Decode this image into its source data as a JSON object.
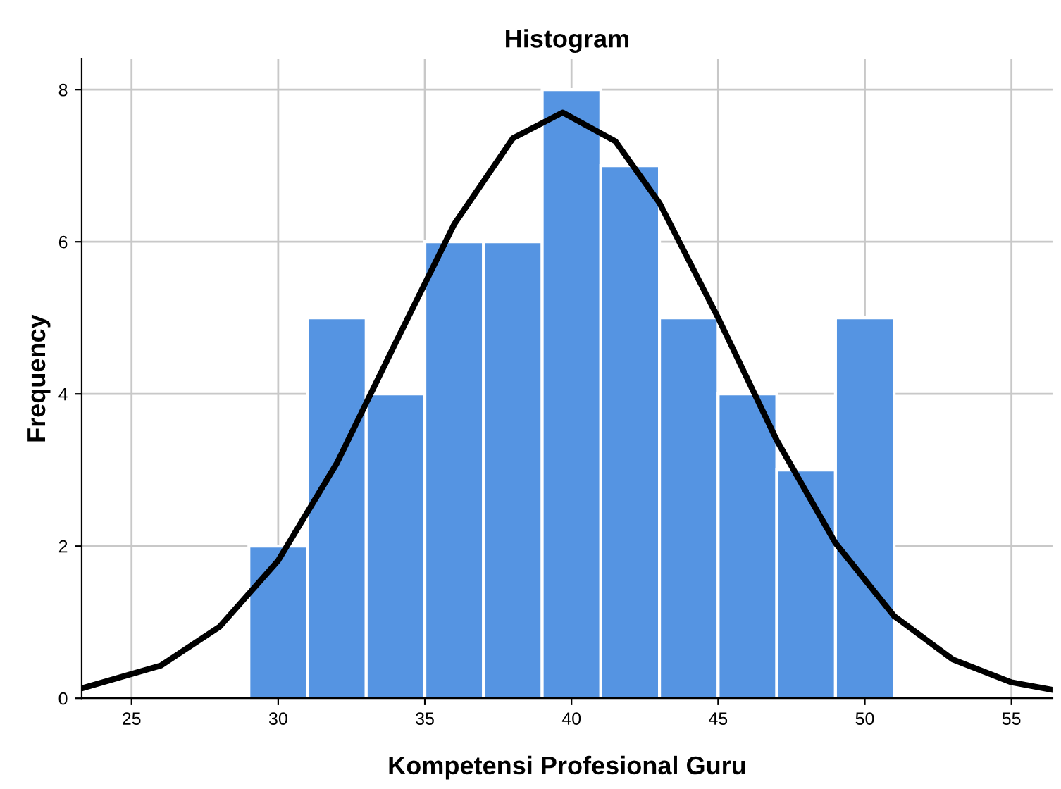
{
  "chart_data": {
    "type": "histogram",
    "title": "Histogram",
    "xlabel": "Kompetensi Profesional Guru",
    "ylabel": "Frequency",
    "bins": [
      29,
      31,
      33,
      35,
      37,
      39,
      41,
      43,
      45,
      47,
      49,
      51
    ],
    "values": [
      2,
      5,
      4,
      6,
      6,
      8,
      7,
      5,
      4,
      3,
      5
    ],
    "color": "#5594e2",
    "series": [
      {
        "type": "line",
        "color": "#000000",
        "x": [
          23.3,
          26,
          28,
          30,
          32,
          34,
          36,
          38,
          39.7,
          41.5,
          43,
          45,
          47,
          49,
          51,
          53,
          55,
          56.4
        ],
        "values": [
          0.13,
          0.43,
          0.94,
          1.81,
          3.09,
          4.67,
          6.23,
          7.36,
          7.7,
          7.32,
          6.51,
          5.0,
          3.39,
          2.04,
          1.08,
          0.51,
          0.21,
          0.11
        ]
      }
    ],
    "xlim": [
      23.3,
      56.4
    ],
    "xticks": [
      25,
      30,
      35,
      40,
      45,
      50,
      55
    ],
    "ylim": [
      0,
      8.4
    ],
    "yticks": [
      0,
      2,
      4,
      6,
      8
    ],
    "grid": true,
    "line_style": "solid",
    "marker": "none"
  }
}
